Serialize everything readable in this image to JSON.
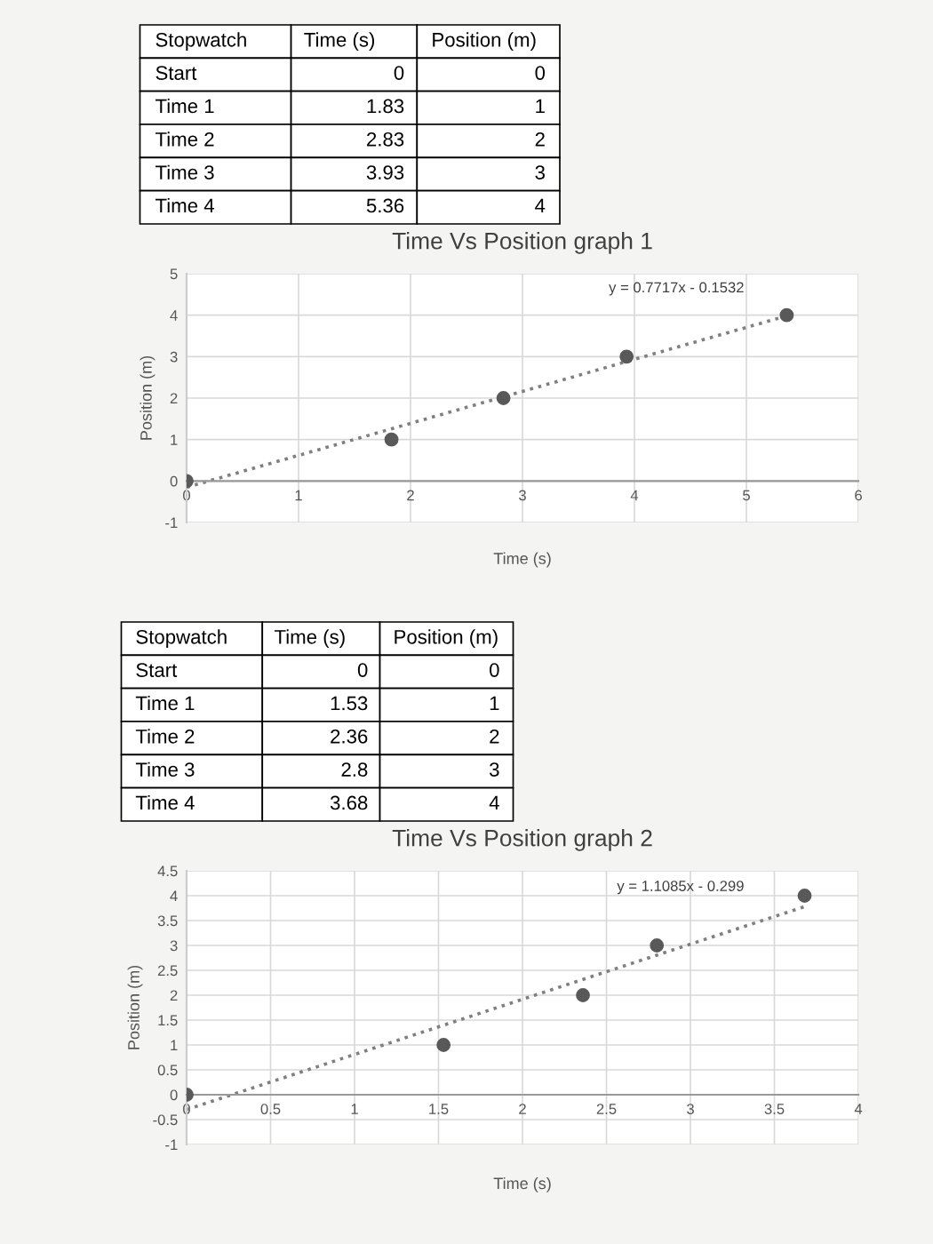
{
  "chart_data": [
    {
      "type": "other",
      "annotations": [
        "Stopwatch",
        "Time (s)",
        "Position (m)",
        "Start",
        "0",
        "0",
        "Time 1",
        "1.83",
        "1",
        "Time 2",
        "2.83",
        "2",
        "Time 3",
        "3.93",
        "3",
        "Time 4",
        "5.36",
        "4"
      ]
    },
    {
      "type": "scatter",
      "title": "Time Vs Position graph 1",
      "xlabel": "Time (s)",
      "ylabel": "Position (m)",
      "series": [
        {
          "type": "scatter",
          "color": "#595959",
          "x": [
            0,
            1.83,
            2.83,
            3.93,
            5.36
          ],
          "values": [
            0,
            1,
            2,
            3,
            4
          ]
        },
        {
          "type": "line",
          "color": "#7f7f7f",
          "line_style": "dotted",
          "marker": "none",
          "x": [
            0,
            5.36
          ],
          "values": [
            -0.1532,
            3.9831
          ]
        }
      ],
      "annotations": [
        "y = 0.7717x - 0.1532"
      ],
      "xlim": [
        0,
        6
      ],
      "xticks": [
        0,
        1,
        2,
        3,
        4,
        5,
        6
      ],
      "ylim": [
        -1,
        5
      ],
      "yticks": [
        -1,
        0,
        1,
        2,
        3,
        4,
        5
      ],
      "grid": true,
      "marker": "circle",
      "legend": false
    },
    {
      "type": "other",
      "annotations": [
        "Stopwatch",
        "Time (s)",
        "Position (m)",
        "Start",
        "0",
        "0",
        "Time 1",
        "1.53",
        "1",
        "Time 2",
        "2.36",
        "2",
        "Time 3",
        "2.8",
        "3",
        "Time 4",
        "3.68",
        "4"
      ]
    },
    {
      "type": "scatter",
      "title": "Time Vs Position graph 2",
      "xlabel": "Time (s)",
      "ylabel": "Position (m)",
      "series": [
        {
          "type": "scatter",
          "color": "#595959",
          "x": [
            0,
            1.53,
            2.36,
            2.8,
            3.68
          ],
          "values": [
            0,
            1,
            2,
            3,
            4
          ]
        },
        {
          "type": "line",
          "color": "#7f7f7f",
          "line_style": "dotted",
          "marker": "none",
          "x": [
            0,
            3.68
          ],
          "values": [
            -0.299,
            3.78
          ]
        }
      ],
      "annotations": [
        "y = 1.1085x - 0.299"
      ],
      "xlim": [
        0,
        4
      ],
      "xticks": [
        0,
        0.5,
        1,
        1.5,
        2,
        2.5,
        3,
        3.5,
        4
      ],
      "ylim": [
        -1,
        4.5
      ],
      "yticks": [
        -1,
        -0.5,
        0,
        0.5,
        1,
        1.5,
        2,
        2.5,
        3,
        3.5,
        4,
        4.5
      ],
      "grid": true,
      "marker": "circle",
      "legend": false
    }
  ]
}
